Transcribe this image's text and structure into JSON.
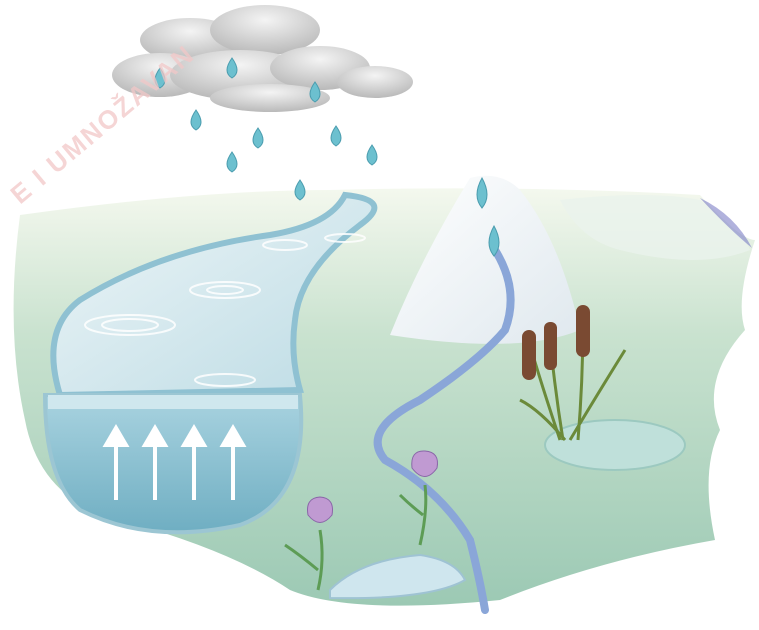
{
  "watermark": "E I UMNOŽAVAN"
}
